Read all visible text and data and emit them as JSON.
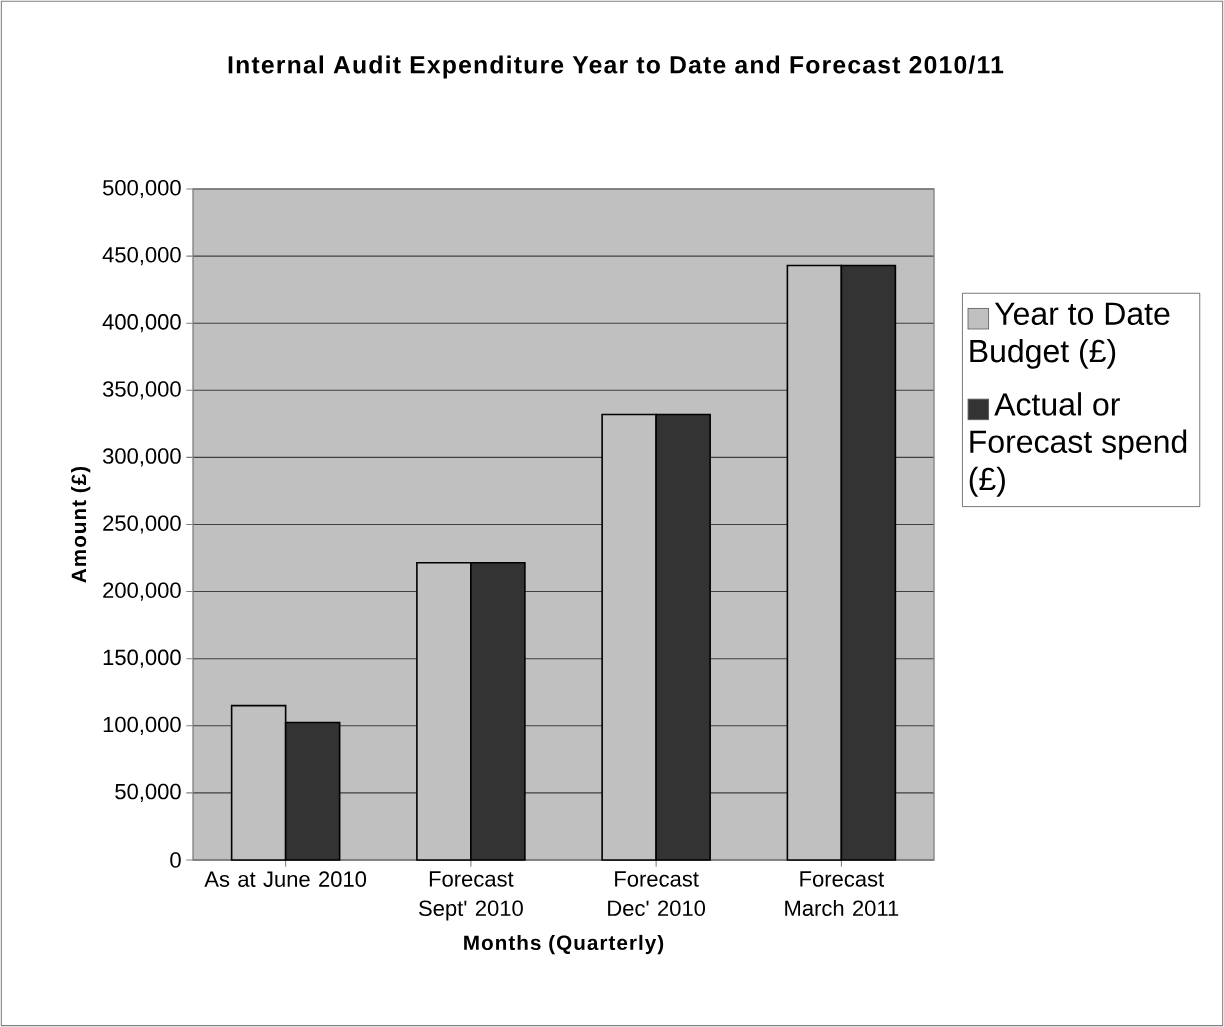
{
  "chart_data": {
    "type": "bar",
    "title": "Internal Audit Expenditure Year to Date and Forecast 2010/11",
    "xlabel": "Months (Quarterly)",
    "ylabel": "Amount (£)",
    "categories": [
      "As at June 2010",
      "Forecast Sept' 2010",
      "Forecast Dec' 2010",
      "Forecast March 2011"
    ],
    "series": [
      {
        "name": "Year to Date Budget (£)",
        "color": "#c0c0c0",
        "values": [
          115000,
          221500,
          332000,
          443000
        ]
      },
      {
        "name": "Actual or Forecast spend (£)",
        "color": "#333333",
        "values": [
          102500,
          221500,
          332000,
          443000
        ]
      }
    ],
    "ylim": [
      0,
      500000
    ],
    "yticks": [
      0,
      {
        "value": 50000,
        "label": "50,000"
      },
      {
        "value": 100000,
        "label": "100,000"
      },
      {
        "value": 150000,
        "label": "150,000"
      },
      {
        "value": 200000,
        "label": "200,000"
      },
      {
        "value": 250000,
        "label": "250,000"
      },
      {
        "value": 300000,
        "label": "300,000"
      },
      {
        "value": 350000,
        "label": "350,000"
      },
      {
        "value": 400000,
        "label": "400,000"
      },
      {
        "value": 450000,
        "label": "450,000"
      },
      {
        "value": 500000,
        "label": "500,000"
      }
    ],
    "grid": "y",
    "legend": "right"
  }
}
